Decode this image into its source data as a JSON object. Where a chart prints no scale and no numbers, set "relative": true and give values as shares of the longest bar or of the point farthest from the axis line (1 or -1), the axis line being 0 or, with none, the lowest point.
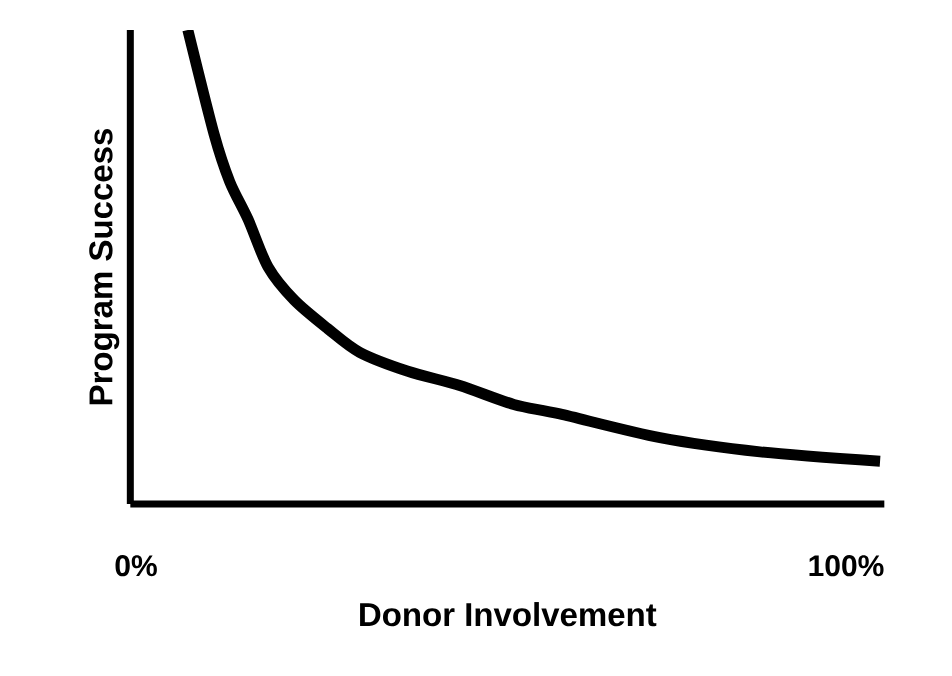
{
  "chart_data": {
    "type": "line",
    "xlabel": "Donor Involvement",
    "ylabel": "Program Success",
    "relative": true,
    "xlim": [
      -0.8,
      105.4
    ],
    "xticks": [
      {
        "value": 0,
        "label": "0%"
      },
      {
        "value": 100,
        "label": "100%"
      }
    ],
    "x": [
      7.3,
      11.0,
      13.2,
      15.8,
      18.6,
      22.3,
      27.0,
      31.5,
      38.3,
      45.6,
      53.2,
      59.7,
      73.8,
      87.9,
      104.8
    ],
    "series": [
      {
        "color": "#000000",
        "values": [
          1.0,
          0.78,
          0.68,
          0.6,
          0.5,
          0.43,
          0.37,
          0.32,
          0.28,
          0.25,
          0.21,
          0.19,
          0.14,
          0.11,
          0.09
        ]
      }
    ],
    "marker": "none",
    "line_style": "solid"
  }
}
